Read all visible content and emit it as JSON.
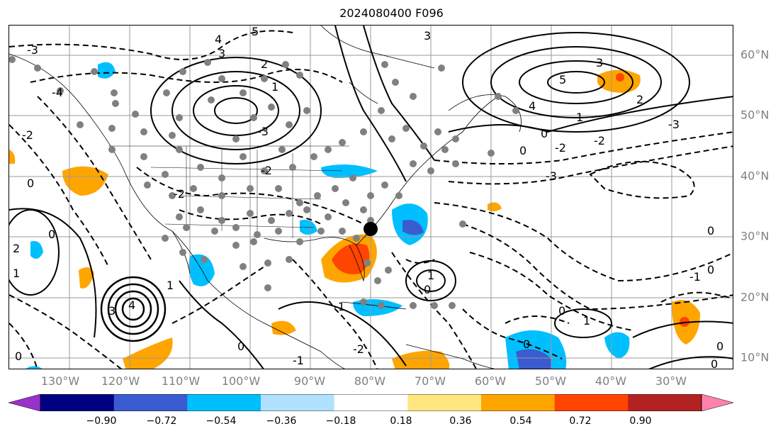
{
  "title": "2024080400 F096",
  "lon_labels": [
    "130°W",
    "120°W",
    "110°W",
    "100°W",
    "90°W",
    "80°W",
    "70°W",
    "60°W",
    "50°W",
    "40°W",
    "30°W"
  ],
  "lat_labels": [
    "60°N",
    "50°N",
    "40°N",
    "30°N",
    "20°N",
    "10°N"
  ],
  "contour_labels": [
    "5",
    "4",
    "3",
    "2",
    "1",
    "0",
    "-1",
    "-2",
    "-3",
    "-4"
  ],
  "colorbar": {
    "ticks": [
      "−0.90",
      "−0.72",
      "−0.54",
      "−0.36",
      "−0.18",
      "0.18",
      "0.36",
      "0.54",
      "0.72",
      "0.90"
    ],
    "colors": [
      "#9932cc",
      "#000080",
      "#3b5bd0",
      "#00bfff",
      "#b0e2ff",
      "#ffffff",
      "#ffe680",
      "#ffa500",
      "#ff4500",
      "#b22222",
      "#ff82ab"
    ]
  },
  "colors": {
    "axis_label": "#808080",
    "contour": "#000000",
    "grid": "#999999"
  }
}
